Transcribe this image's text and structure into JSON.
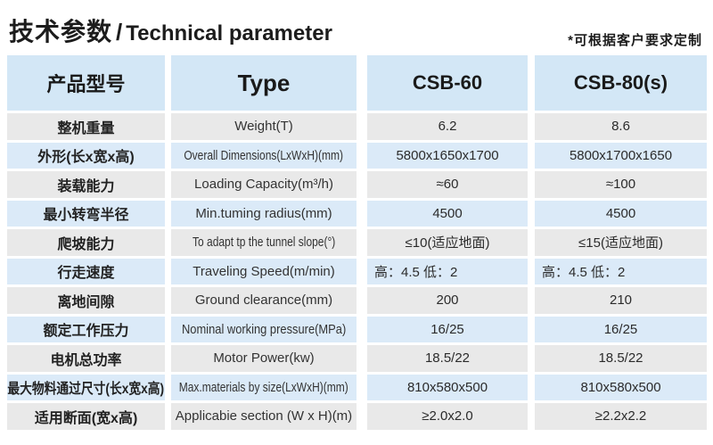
{
  "title": {
    "zh": "技术参数",
    "sep": "/",
    "en": "Technical parameter"
  },
  "note": "*可根据客户要求定制",
  "colors": {
    "header_bg": "#d3e7f6",
    "row_blue": "#dbeaf8",
    "row_gray": "#e9e9e9",
    "text": "#262626",
    "background": "#ffffff"
  },
  "table": {
    "headers": [
      "产品型号",
      "Type",
      "CSB-60",
      "CSB-80(s)"
    ],
    "rows": [
      {
        "zh": "整机重量",
        "en": "Weight(T)",
        "v1": "6.2",
        "v2": "8.6"
      },
      {
        "zh": "外形(长x宽x高)",
        "en": "Overall Dimensions(LxWxH)(mm)",
        "v1": "5800x1650x1700",
        "v2": "5800x1700x1650"
      },
      {
        "zh": "装载能力",
        "en": "Loading Capacity(m³/h)",
        "v1": "≈60",
        "v2": "≈100"
      },
      {
        "zh": "最小转弯半径",
        "en": "Min.tuming radius(mm)",
        "v1": "4500",
        "v2": "4500"
      },
      {
        "zh": "爬坡能力",
        "en": "To adapt tp the tunnel slope(°)",
        "v1": "≤10(适应地面)",
        "v2": "≤15(适应地面)"
      },
      {
        "zh": "行走速度",
        "en": "Traveling Speed(m/min)",
        "v1": "高：4.5 低：2",
        "v2": "高：4.5 低：2"
      },
      {
        "zh": "离地间隙",
        "en": "Ground clearance(mm)",
        "v1": "200",
        "v2": "210"
      },
      {
        "zh": "额定工作压力",
        "en": "Nominal working pressure(MPa)",
        "v1": "16/25",
        "v2": "16/25"
      },
      {
        "zh": "电机总功率",
        "en": "Motor Power(kw)",
        "v1": "18.5/22",
        "v2": "18.5/22"
      },
      {
        "zh": "最大物料通过尺寸(长x宽x高)",
        "en": "Max.materials by size(LxWxH)(mm)",
        "v1": "810x580x500",
        "v2": "810x580x500"
      },
      {
        "zh": "适用断面(宽x高)",
        "en": "Applicabie section (W x H)(m)",
        "v1": "≥2.0x2.0",
        "v2": "≥2.2x2.2"
      }
    ]
  }
}
